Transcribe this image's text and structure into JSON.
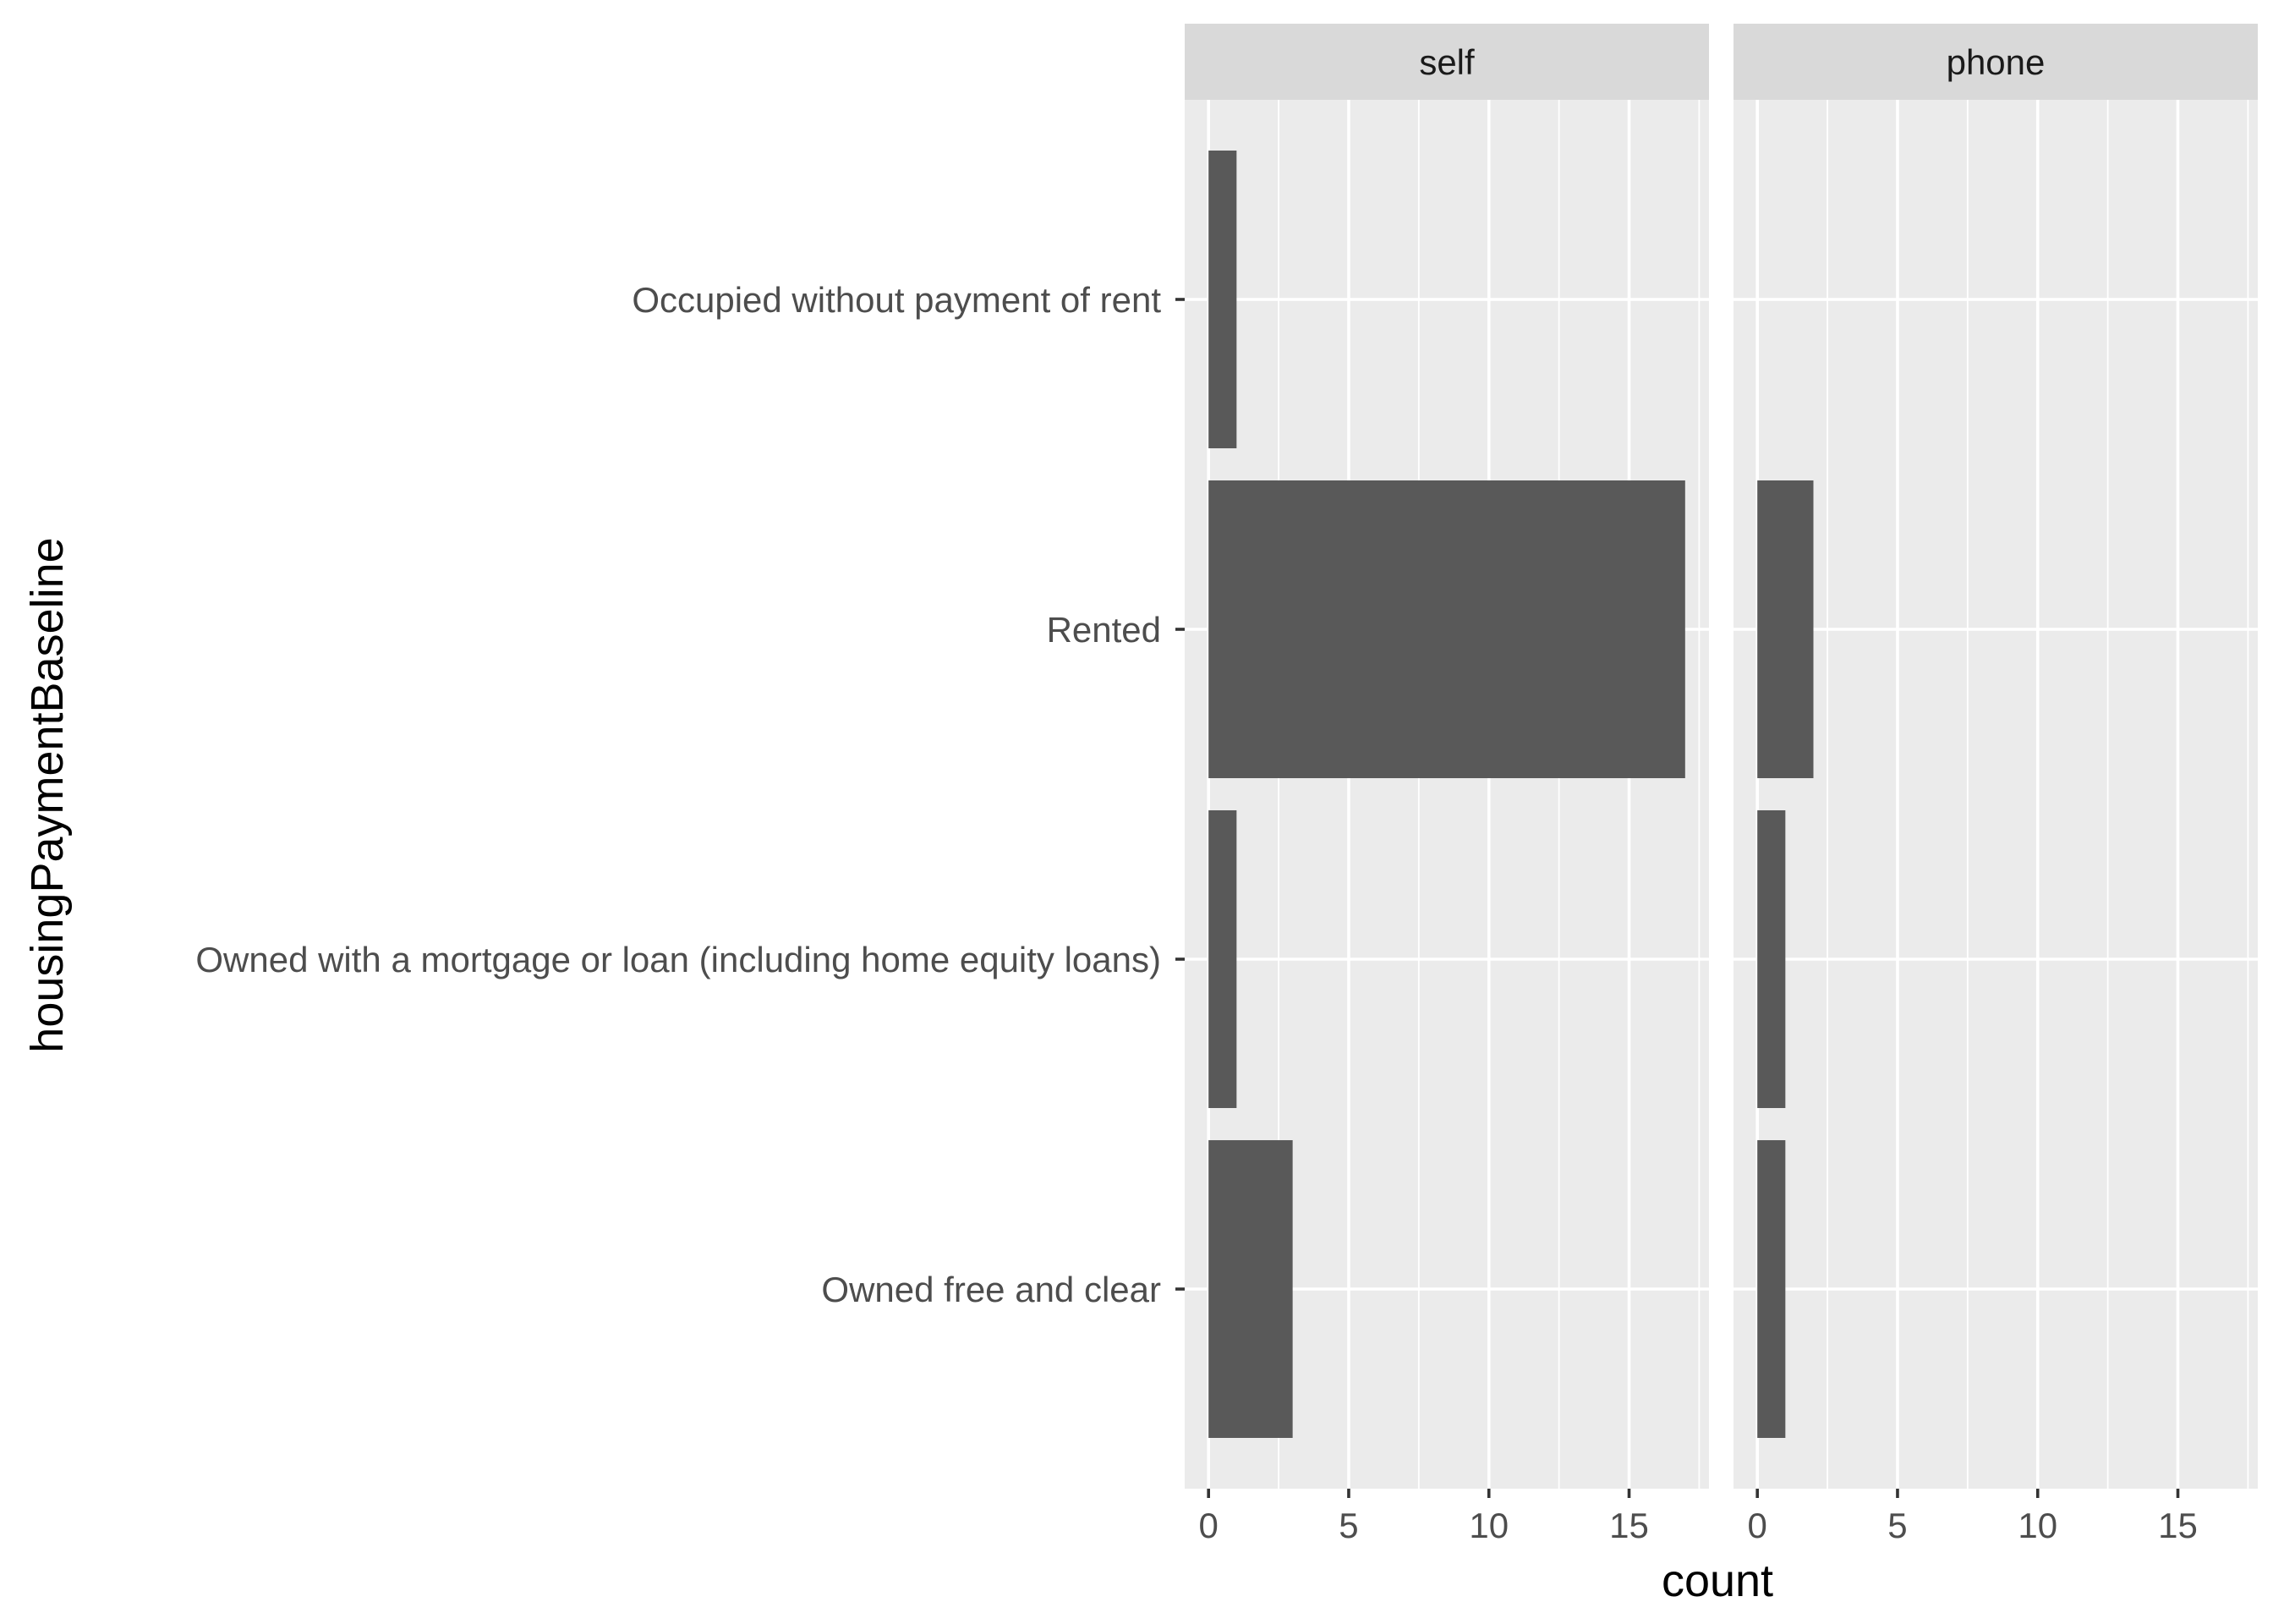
{
  "chart_data": {
    "type": "bar",
    "orientation": "horizontal",
    "xlabel": "count",
    "ylabel": "housingPaymentBaseline",
    "categories": [
      "Occupied without payment of rent",
      "Rented",
      "Owned with a mortgage or loan (including home equity loans)",
      "Owned free and clear"
    ],
    "xlim": [
      -0.85,
      17.85
    ],
    "x_ticks": [
      0,
      5,
      10,
      15
    ],
    "x_minor": [
      2.5,
      7.5,
      12.5,
      17.5
    ],
    "grid": true,
    "facets": [
      {
        "name": "self",
        "values": [
          1,
          17,
          1,
          3
        ]
      },
      {
        "name": "phone",
        "values": [
          0,
          2,
          1,
          1
        ]
      }
    ]
  },
  "colors": {
    "bar": "#595959",
    "panel": "#EBEBEB",
    "strip": "#D9D9D9",
    "grid": "#FFFFFF",
    "tick_label": "#4D4D4D",
    "axis_title": "#000000"
  }
}
